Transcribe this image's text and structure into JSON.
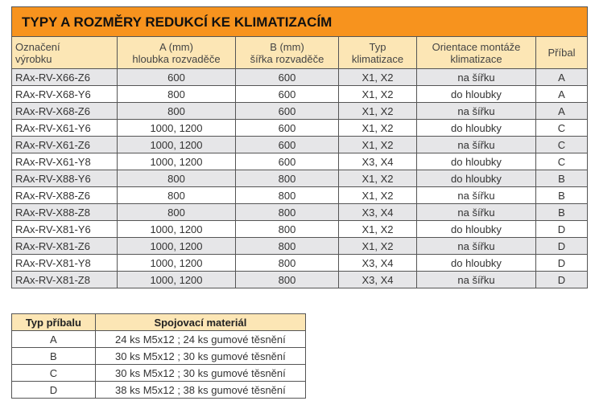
{
  "main_table": {
    "title": "TYPY A ROZMĚRY REDUKCÍ KE KLIMATIZACÍM",
    "headers": [
      [
        "Označení",
        "výrobku"
      ],
      [
        "A (mm)",
        "hloubka rozvaděče"
      ],
      [
        "B (mm)",
        "šířka rozvaděče"
      ],
      [
        "Typ",
        "klimatizace"
      ],
      [
        "Orientace montáže",
        "klimatizace"
      ],
      [
        "Příbal"
      ]
    ],
    "rows": [
      [
        "RAx-RV-X66-Z6",
        "600",
        "600",
        "X1, X2",
        "na šířku",
        "A"
      ],
      [
        "RAx-RV-X68-Y6",
        "800",
        "600",
        "X1, X2",
        "do hloubky",
        "A"
      ],
      [
        "RAx-RV-X68-Z6",
        "800",
        "600",
        "X1, X2",
        "na šířku",
        "A"
      ],
      [
        "RAx-RV-X61-Y6",
        "1000, 1200",
        "600",
        "X1, X2",
        "do hloubky",
        "C"
      ],
      [
        "RAx-RV-X61-Z6",
        "1000, 1200",
        "600",
        "X1, X2",
        "na šířku",
        "C"
      ],
      [
        "RAx-RV-X61-Y8",
        "1000, 1200",
        "600",
        "X3, X4",
        "do hloubky",
        "C"
      ],
      [
        "RAx-RV-X88-Y6",
        "800",
        "800",
        "X1, X2",
        "do hloubky",
        "B"
      ],
      [
        "RAx-RV-X88-Z6",
        "800",
        "800",
        "X1, X2",
        "na šířku",
        "B"
      ],
      [
        "RAx-RV-X88-Z8",
        "800",
        "800",
        "X3, X4",
        "na šířku",
        "B"
      ],
      [
        "RAx-RV-X81-Y6",
        "1000, 1200",
        "800",
        "X1, X2",
        "do hloubky",
        "D"
      ],
      [
        "RAx-RV-X81-Z6",
        "1000, 1200",
        "800",
        "X1, X2",
        "na šířku",
        "D"
      ],
      [
        "RAx-RV-X81-Y8",
        "1000, 1200",
        "800",
        "X3, X4",
        "do hloubky",
        "D"
      ],
      [
        "RAx-RV-X81-Z8",
        "1000, 1200",
        "800",
        "X3, X4",
        "na šířku",
        "D"
      ]
    ]
  },
  "pack_table": {
    "headers": [
      "Typ příbalu",
      "Spojovací materiál"
    ],
    "rows": [
      [
        "A",
        "24 ks M5x12 ; 24 ks gumové těsnění"
      ],
      [
        "B",
        "30 ks M5x12 ; 30 ks gumové těsnění"
      ],
      [
        "C",
        "30 ks M5x12 ; 30 ks gumové těsnění"
      ],
      [
        "D",
        "38 ks M5x12 ; 38 ks gumové těsnění"
      ]
    ]
  },
  "colors": {
    "title_bg": "#f7931e",
    "header_bg": "#fce6b5",
    "stripe": "#e6e6e8"
  }
}
